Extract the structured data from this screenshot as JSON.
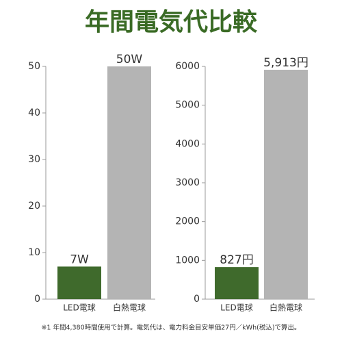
{
  "title": "年間電気代比較",
  "note": "※1 年間4,380時間使用で計算。電気代は、電力料金目安単価27円／kWh(税込)で算出。",
  "chart_data": [
    {
      "type": "bar",
      "categories": [
        "LED電球",
        "白熱電球"
      ],
      "values": [
        7,
        50
      ],
      "value_labels": [
        "7W",
        "50W"
      ],
      "colors": [
        "#3f6a2c",
        "#b4b4b4"
      ],
      "ylim": [
        0,
        50
      ],
      "yticks": [
        0,
        10,
        20,
        30,
        40,
        50
      ]
    },
    {
      "type": "bar",
      "categories": [
        "LED電球",
        "白熱電球"
      ],
      "values": [
        827,
        5913
      ],
      "value_labels": [
        "827円",
        "5,913円"
      ],
      "colors": [
        "#3f6a2c",
        "#b4b4b4"
      ],
      "ylim": [
        0,
        6000
      ],
      "yticks": [
        0,
        1000,
        2000,
        3000,
        4000,
        5000,
        6000
      ]
    }
  ]
}
